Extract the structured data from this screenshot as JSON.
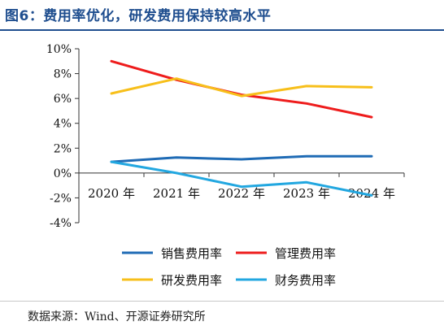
{
  "title": "图6：费用率优化，研发费用保持较高水平",
  "source": "数据来源：Wind、开源证券研究所",
  "chart_data": {
    "type": "line",
    "categories": [
      "2020 年",
      "2021 年",
      "2022 年",
      "2023 年",
      "2024 年"
    ],
    "y_ticks": [
      "10%",
      "8%",
      "6%",
      "4%",
      "2%",
      "0%",
      "-2%",
      "-4%"
    ],
    "ylim": [
      -4,
      10
    ],
    "unit": "%",
    "grid": false,
    "legend_position": "bottom",
    "series": [
      {
        "name": "销售费用率",
        "color": "#1f6bb5",
        "values": [
          0.9,
          1.25,
          1.1,
          1.35,
          1.35
        ]
      },
      {
        "name": "管理费用率",
        "color": "#ee1c1c",
        "values": [
          9.0,
          7.5,
          6.3,
          5.6,
          4.5
        ]
      },
      {
        "name": "研发费用率",
        "color": "#f7bf1a",
        "values": [
          6.4,
          7.6,
          6.2,
          7.0,
          6.9
        ]
      },
      {
        "name": "财务费用率",
        "color": "#22a7e0",
        "values": [
          0.9,
          0.0,
          -1.1,
          -0.75,
          -1.8
        ]
      }
    ]
  }
}
